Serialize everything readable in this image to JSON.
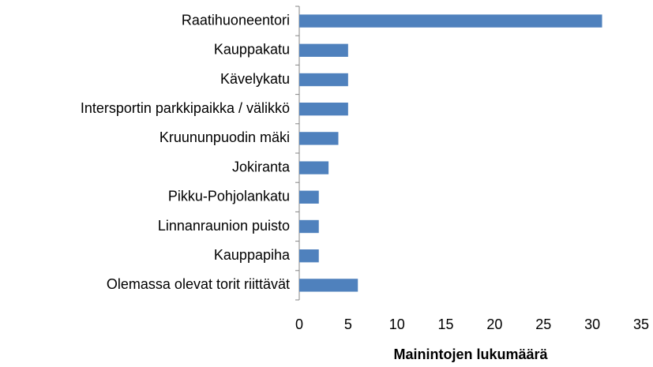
{
  "chart_data": {
    "type": "hbar",
    "x_label": "Mainintojen lukumäärä",
    "categories": [
      "Raatihuoneentori",
      "Kauppakatu",
      "Kävelykatu",
      "Intersportin parkkipaikka / välikkö",
      "Kruununpuodin mäki",
      "Jokiranta",
      "Pikku-Pohjolankatu",
      "Linnanraunion puisto",
      "Kauppapiha",
      "Olemassa olevat torit riittävät"
    ],
    "values": [
      31,
      5,
      5,
      5,
      4,
      3,
      2,
      2,
      2,
      6
    ],
    "color": "#4f81bd",
    "xlim": [
      0,
      35
    ],
    "xticks": [
      0,
      5,
      10,
      15,
      20,
      25,
      30,
      35
    ],
    "grid": false
  }
}
